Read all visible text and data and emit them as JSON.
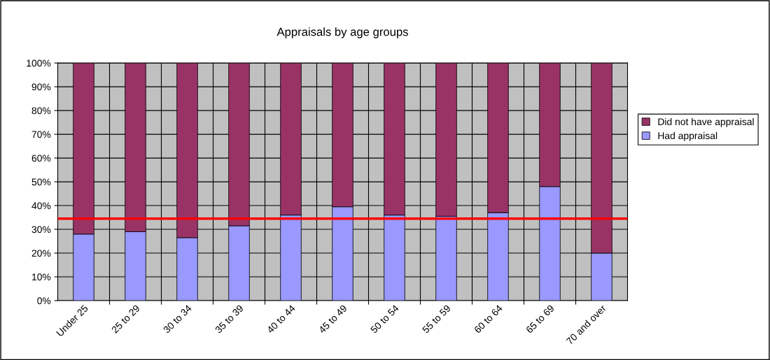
{
  "chart_data": {
    "type": "bar",
    "title": "Appraisals by age groups",
    "categories": [
      "Under 25",
      "25 to 29",
      "30 to 34",
      "35 to 39",
      "40 to 44",
      "45 to 49",
      "50 to 54",
      "55 to 59",
      "60 to 64",
      "65 to 69",
      "70 and over"
    ],
    "stacked": true,
    "series": [
      {
        "name": "Had appraisal",
        "color": "#9999ff",
        "values": [
          28,
          29,
          26.5,
          31.5,
          36,
          39.5,
          36,
          35.5,
          37,
          48,
          20
        ]
      },
      {
        "name": "Did not have appraisal",
        "color": "#993366",
        "values": [
          72,
          71,
          73.5,
          68.5,
          64,
          60.5,
          64,
          64.5,
          63,
          52,
          80
        ]
      }
    ],
    "ylim": [
      0,
      100
    ],
    "yticks": [
      {
        "value": 0,
        "label": "0%"
      },
      {
        "value": 10,
        "label": "10%"
      },
      {
        "value": 20,
        "label": "20%"
      },
      {
        "value": 30,
        "label": "30%"
      },
      {
        "value": 40,
        "label": "40%"
      },
      {
        "value": 50,
        "label": "50%"
      },
      {
        "value": 60,
        "label": "60%"
      },
      {
        "value": 70,
        "label": "70%"
      },
      {
        "value": 80,
        "label": "80%"
      },
      {
        "value": 90,
        "label": "90%"
      },
      {
        "value": 100,
        "label": "100%"
      }
    ],
    "ref_lines": [
      {
        "axis": "y",
        "value": 34.5,
        "color": "#ff0000",
        "line_style": "solid"
      }
    ],
    "grid": true,
    "legend": "right"
  }
}
